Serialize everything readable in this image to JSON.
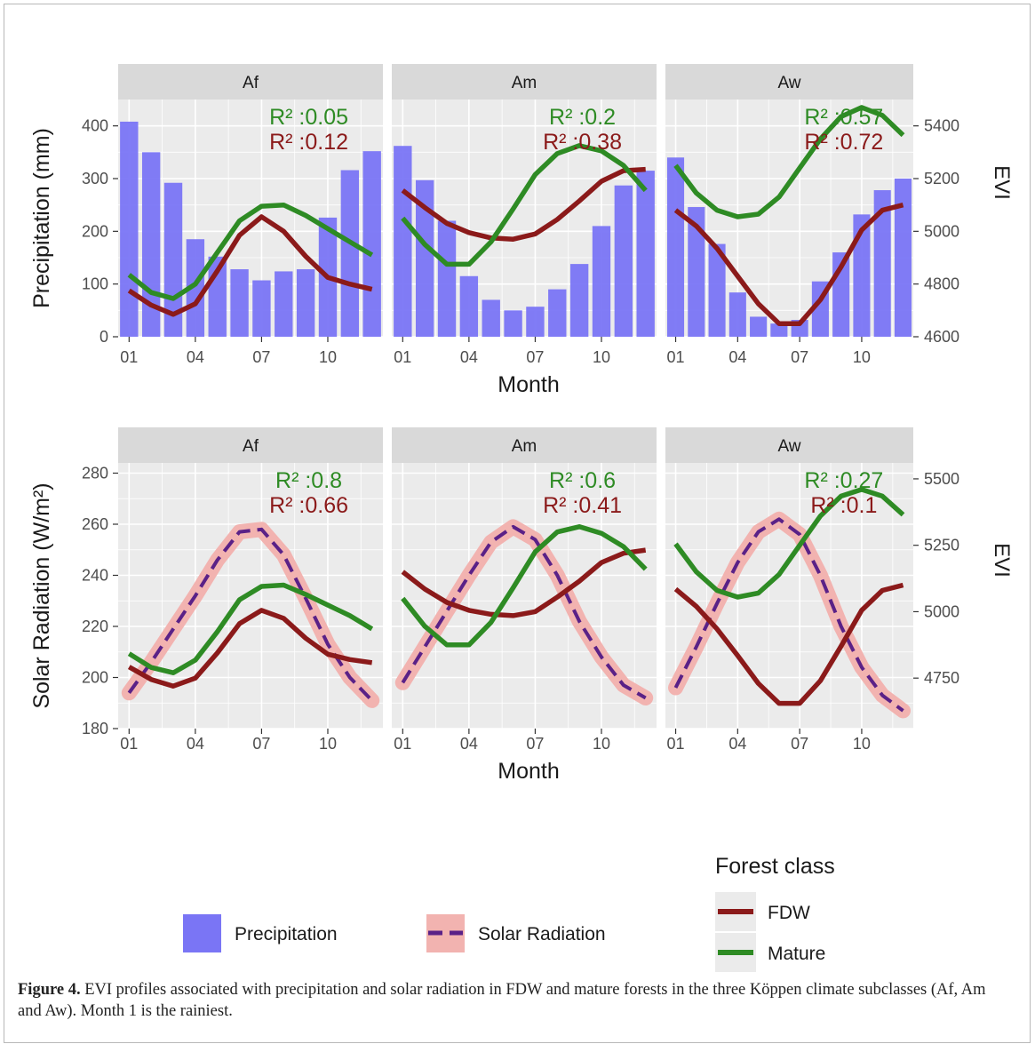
{
  "figure": {
    "caption_label": "Figure 4.",
    "caption_text": " EVI profiles associated with precipitation and solar radiation in FDW and mature forests in the three Köppen climate subclasses (Af, Am and Aw). Month 1 is the rainiest."
  },
  "legend": {
    "precip_label": "Precipitation",
    "solar_label": "Solar Radiation",
    "forest_title": "Forest class",
    "fdw_label": "FDW",
    "mature_label": "Mature"
  },
  "colors": {
    "fdw": "#8b1a1a",
    "mature": "#2e8b24",
    "bar": "#7a75f5",
    "solar_line": "#5a2187",
    "solar_band": "#f2b3b0",
    "panel_bg": "#ebebeb",
    "strip_bg": "#d9d9d9",
    "r2_mature": "#2e8b24",
    "r2_fdw": "#8b1a1a"
  },
  "chart_data": [
    {
      "type": "bar",
      "row": "precipitation",
      "xlabel": "Month",
      "ylabel": "Precipitation (mm)",
      "y2label": "EVI",
      "x_ticks": [
        "01",
        "04",
        "07",
        "10"
      ],
      "ylim": [
        0,
        450
      ],
      "y_ticks": [
        0,
        100,
        200,
        300,
        400
      ],
      "y2lim": [
        4600,
        5500
      ],
      "y2_ticks": [
        4600,
        4800,
        5000,
        5200,
        5400
      ],
      "grid": true,
      "months": [
        1,
        2,
        3,
        4,
        5,
        6,
        7,
        8,
        9,
        10,
        11,
        12
      ],
      "facets": [
        {
          "name": "Af",
          "r2_mature": "R² :0.05",
          "r2_fdw": "R² :0.12",
          "precipitation": [
            408,
            350,
            292,
            185,
            152,
            128,
            107,
            124,
            128,
            226,
            316,
            352
          ],
          "series": [
            {
              "name": "FDW",
              "values": [
                4775,
                4720,
                4685,
                4725,
                4850,
                4985,
                5055,
                5000,
                4905,
                4825,
                4800,
                4780
              ]
            },
            {
              "name": "Mature",
              "values": [
                4835,
                4768,
                4745,
                4800,
                4920,
                5040,
                5095,
                5100,
                5060,
                5010,
                4960,
                4910
              ]
            }
          ]
        },
        {
          "name": "Am",
          "r2_mature": "R² :0.2",
          "r2_fdw": "R² :0.38",
          "precipitation": [
            362,
            297,
            220,
            115,
            70,
            50,
            57,
            90,
            138,
            210,
            287,
            315
          ],
          "series": [
            {
              "name": "FDW",
              "values": [
                5155,
                5090,
                5030,
                4995,
                4975,
                4970,
                4990,
                5045,
                5115,
                5190,
                5230,
                5235
              ]
            },
            {
              "name": "Mature",
              "values": [
                5050,
                4950,
                4875,
                4875,
                4960,
                5085,
                5215,
                5295,
                5325,
                5305,
                5250,
                5155
              ]
            }
          ]
        },
        {
          "name": "Aw",
          "r2_mature": "R² :0.57",
          "r2_fdw": "R² :0.72",
          "precipitation": [
            340,
            246,
            176,
            84,
            38,
            25,
            32,
            105,
            160,
            232,
            278,
            300
          ],
          "series": [
            {
              "name": "FDW",
              "values": [
                5080,
                5020,
                4935,
                4830,
                4725,
                4650,
                4650,
                4740,
                4865,
                5005,
                5080,
                5100
              ]
            },
            {
              "name": "Mature",
              "values": [
                5250,
                5145,
                5080,
                5055,
                5065,
                5130,
                5240,
                5350,
                5435,
                5470,
                5440,
                5365
              ]
            }
          ]
        }
      ]
    },
    {
      "type": "line",
      "row": "solar",
      "xlabel": "Month",
      "ylabel": "Solar Radiation (W/m²)",
      "y2label": "EVI",
      "x_ticks": [
        "01",
        "04",
        "07",
        "10"
      ],
      "ylim": [
        180,
        284
      ],
      "y_ticks": [
        180,
        200,
        220,
        240,
        260,
        280
      ],
      "y2lim": [
        4560,
        5560
      ],
      "y2_ticks": [
        4750,
        5000,
        5250,
        5500
      ],
      "grid": true,
      "months": [
        1,
        2,
        3,
        4,
        5,
        6,
        7,
        8,
        9,
        10,
        11,
        12
      ],
      "facets": [
        {
          "name": "Af",
          "r2_mature": "R² :0.8",
          "r2_fdw": "R² :0.66",
          "solar": [
            194,
            206,
            219,
            232,
            246,
            257,
            258,
            248,
            231,
            213,
            200,
            191
          ],
          "series": [
            {
              "name": "FDW",
              "values": [
                4792,
                4745,
                4720,
                4750,
                4845,
                4955,
                5005,
                4975,
                4900,
                4840,
                4820,
                4808
              ]
            },
            {
              "name": "Mature",
              "values": [
                4842,
                4790,
                4770,
                4818,
                4925,
                5045,
                5095,
                5100,
                5065,
                5025,
                4985,
                4935
              ]
            }
          ]
        },
        {
          "name": "Am",
          "r2_mature": "R² :0.6",
          "r2_fdw": "R² :0.41",
          "solar": [
            198,
            212,
            226,
            240,
            253,
            259,
            254,
            240,
            222,
            208,
            197,
            192
          ],
          "series": [
            {
              "name": "FDW",
              "values": [
                5150,
                5085,
                5035,
                5005,
                4990,
                4985,
                5000,
                5055,
                5115,
                5185,
                5220,
                5232
              ]
            },
            {
              "name": "Mature",
              "values": [
                5050,
                4945,
                4875,
                4875,
                4960,
                5090,
                5225,
                5300,
                5320,
                5295,
                5245,
                5160
              ]
            }
          ]
        },
        {
          "name": "Aw",
          "r2_mature": "R² :0.27",
          "r2_fdw": "R² :0.1",
          "solar": [
            196,
            212,
            229,
            245,
            257,
            262,
            256,
            240,
            220,
            204,
            193,
            187
          ],
          "series": [
            {
              "name": "FDW",
              "values": [
                5085,
                5020,
                4935,
                4835,
                4730,
                4655,
                4655,
                4740,
                4870,
                5005,
                5080,
                5100
              ]
            },
            {
              "name": "Mature",
              "values": [
                5255,
                5150,
                5080,
                5055,
                5070,
                5140,
                5250,
                5360,
                5435,
                5460,
                5435,
                5365
              ]
            }
          ]
        }
      ]
    }
  ]
}
